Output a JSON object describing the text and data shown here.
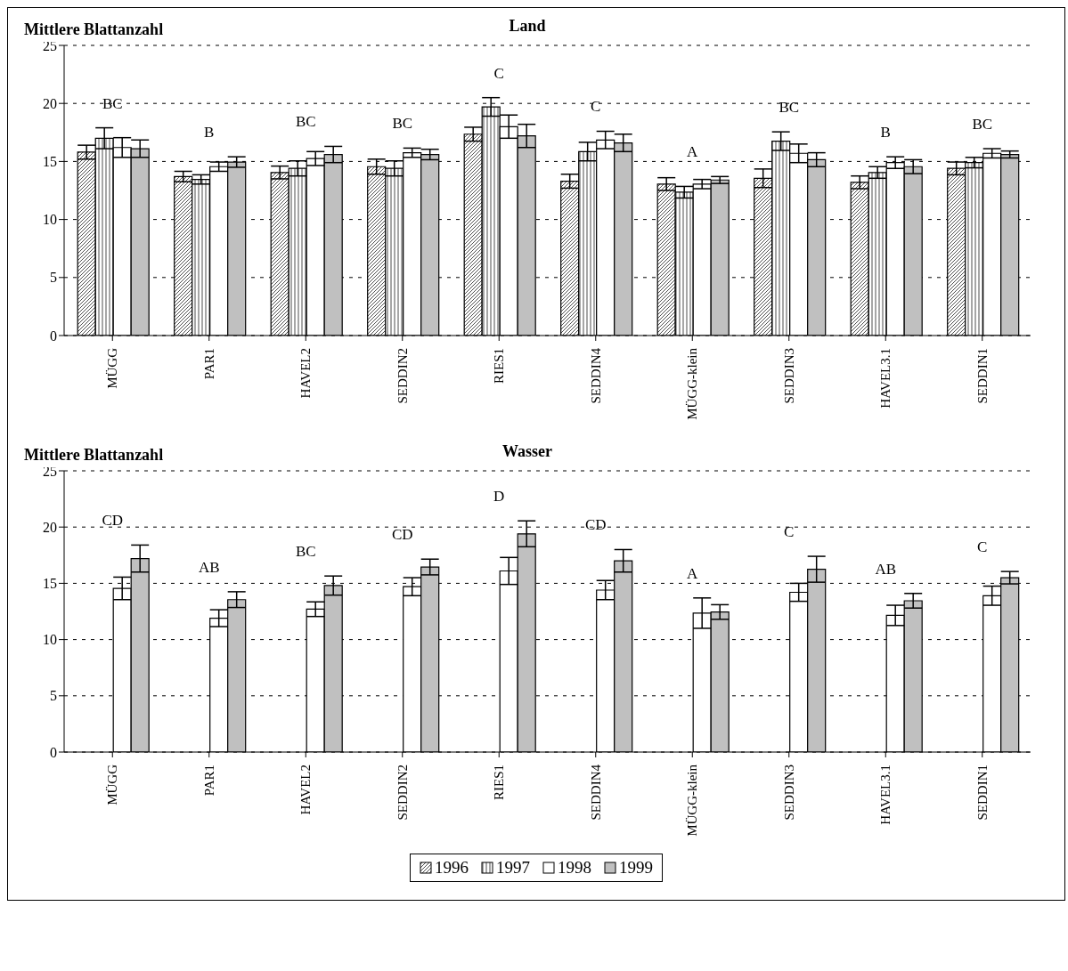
{
  "chart_data": [
    {
      "type": "bar",
      "title": "Land",
      "ylabel": "Mittlere Blattanzahl",
      "categories": [
        "MÜGG",
        "PAR1",
        "HAVEL2",
        "SEDDIN2",
        "RIES1",
        "SEDDIN4",
        "MÜGG-klein",
        "SEDDIN3",
        "HAVEL3.1",
        "SEDDIN1"
      ],
      "series": [
        {
          "name": "1996",
          "color": "#000000",
          "values": [
            15.8,
            13.7,
            14.05,
            14.55,
            17.35,
            13.3,
            13.05,
            13.55,
            13.2,
            14.4
          ],
          "errors": [
            0.6,
            0.45,
            0.55,
            0.65,
            0.6,
            0.6,
            0.55,
            0.8,
            0.55,
            0.55
          ]
        },
        {
          "name": "1997",
          "color": "#000000",
          "values": [
            17.0,
            13.45,
            14.4,
            14.4,
            19.7,
            15.85,
            12.35,
            16.75,
            14.05,
            14.9
          ],
          "errors": [
            0.9,
            0.4,
            0.65,
            0.65,
            0.8,
            0.8,
            0.5,
            0.8,
            0.5,
            0.45
          ]
        },
        {
          "name": "1998",
          "color": "#ffffff",
          "values": [
            16.2,
            14.55,
            15.25,
            15.75,
            18.0,
            16.85,
            13.05,
            15.7,
            14.9,
            15.7
          ],
          "errors": [
            0.85,
            0.4,
            0.6,
            0.4,
            1.0,
            0.75,
            0.4,
            0.8,
            0.5,
            0.4
          ]
        },
        {
          "name": "1999",
          "color": "#c0c0c0",
          "values": [
            16.1,
            14.95,
            15.6,
            15.6,
            17.2,
            16.6,
            13.4,
            15.15,
            14.55,
            15.6
          ],
          "errors": [
            0.75,
            0.45,
            0.7,
            0.45,
            1.0,
            0.75,
            0.3,
            0.6,
            0.6,
            0.3
          ]
        }
      ],
      "ylim": [
        0,
        25
      ],
      "yticks": [
        0,
        5,
        10,
        15,
        20,
        25
      ],
      "grid": "y",
      "legend": "bottom",
      "annotations": [
        "BC",
        "B",
        "BC",
        "BC",
        "C",
        "C",
        "A",
        "BC",
        "B",
        "BC"
      ]
    },
    {
      "type": "bar",
      "title": "Wasser",
      "ylabel": "Mittlere Blattanzahl",
      "categories": [
        "MÜGG",
        "PAR1",
        "HAVEL2",
        "SEDDIN2",
        "RIES1",
        "SEDDIN4",
        "MÜGG-klein",
        "SEDDIN3",
        "HAVEL3.1",
        "SEDDIN1"
      ],
      "series": [
        {
          "values": [
            null,
            null,
            null,
            null,
            null,
            null,
            null,
            null,
            null,
            null
          ]
        },
        {
          "values": [
            null,
            null,
            null,
            null,
            null,
            null,
            null,
            null,
            null,
            null
          ]
        },
        {
          "name": "1998",
          "color": "#ffffff",
          "values": [
            14.55,
            11.9,
            12.7,
            14.7,
            16.1,
            14.4,
            12.35,
            14.2,
            12.15,
            13.9
          ],
          "errors": [
            1.0,
            0.75,
            0.65,
            0.8,
            1.2,
            0.85,
            1.35,
            0.8,
            0.9,
            0.85
          ]
        },
        {
          "name": "1999",
          "color": "#c0c0c0",
          "values": [
            17.2,
            13.55,
            14.8,
            16.45,
            19.4,
            17.0,
            12.45,
            16.25,
            13.45,
            15.5
          ],
          "errors": [
            1.2,
            0.7,
            0.85,
            0.7,
            1.15,
            1.0,
            0.65,
            1.15,
            0.65,
            0.55
          ]
        }
      ],
      "ylim": [
        0,
        25
      ],
      "yticks": [
        0,
        5,
        10,
        15,
        20,
        25
      ],
      "grid": "y",
      "annotations": [
        "CD",
        "AB",
        "BC",
        "CD",
        "D",
        "CD",
        "A",
        "C",
        "AB",
        "C"
      ]
    }
  ]
}
